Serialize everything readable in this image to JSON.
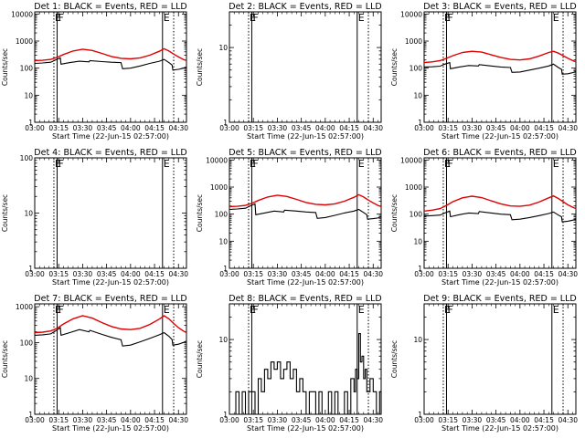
{
  "colors": {
    "events": "#000000",
    "lld": "#e00000",
    "frame": "#000000",
    "background": "#ffffff"
  },
  "x_tick_labels": [
    "03:00",
    "03:15",
    "03:30",
    "03:45",
    "04:00",
    "04:15",
    "04:30"
  ],
  "xlabel": "Start Time (22-Jun-15 02:57:00)",
  "ylabel": "Counts/sec",
  "chart_data": [
    {
      "type": "line",
      "title": "Det 1: BLACK = Events, RED = LLD",
      "x_unit": "minutes after 03:00",
      "xlim": [
        0,
        95
      ],
      "y_scale": "log",
      "ylim": [
        1,
        12000
      ],
      "y_tick_labels": [
        "10000",
        "1000",
        "100",
        "10",
        "1"
      ],
      "y_ticks": [
        10000,
        1000,
        100,
        10,
        1
      ],
      "markers": [
        {
          "x": 12,
          "label": "E",
          "style": "dotted"
        },
        {
          "x": 14,
          "label": "F",
          "style": "solid"
        },
        {
          "x": 80,
          "label": "E",
          "style": "solid"
        },
        {
          "x": 87,
          "label": "",
          "style": "dotted"
        }
      ],
      "series": [
        {
          "role": "lld",
          "x": [
            0,
            5,
            10,
            14,
            18,
            24,
            30,
            36,
            42,
            48,
            54,
            60,
            66,
            72,
            78,
            81,
            84,
            87,
            90,
            93,
            95
          ],
          "values": [
            190,
            195,
            210,
            250,
            320,
            430,
            500,
            450,
            350,
            270,
            230,
            220,
            240,
            300,
            420,
            520,
            430,
            330,
            260,
            210,
            190
          ]
        },
        {
          "role": "events",
          "x": [
            0,
            5,
            10,
            13,
            16,
            16.5,
            22,
            28,
            34,
            34.5,
            42,
            48,
            54,
            55,
            60,
            66,
            72,
            78,
            81,
            84,
            86,
            86.5,
            90,
            93,
            95
          ],
          "values": [
            150,
            155,
            165,
            200,
            240,
            140,
            160,
            180,
            170,
            190,
            175,
            165,
            160,
            95,
            100,
            120,
            150,
            180,
            210,
            160,
            130,
            85,
            90,
            100,
            110
          ]
        }
      ]
    },
    {
      "type": "line",
      "title": "Det 2: BLACK = Events, RED = LLD",
      "x_unit": "minutes after 03:00",
      "xlim": [
        0,
        95
      ],
      "y_scale": "log",
      "ylim": [
        1,
        30
      ],
      "y_tick_labels": [
        "10",
        "1"
      ],
      "y_ticks": [
        10,
        1
      ],
      "markers": [
        {
          "x": 12,
          "label": "E",
          "style": "dotted"
        },
        {
          "x": 14,
          "label": "F",
          "style": "solid"
        },
        {
          "x": 80,
          "label": "E",
          "style": "solid"
        },
        {
          "x": 87,
          "label": "",
          "style": "dotted"
        }
      ],
      "series": []
    },
    {
      "type": "line",
      "title": "Det 3: BLACK = Events, RED = LLD",
      "x_unit": "minutes after 03:00",
      "xlim": [
        0,
        95
      ],
      "y_scale": "log",
      "ylim": [
        1,
        12000
      ],
      "y_tick_labels": [
        "10000",
        "1000",
        "100",
        "10",
        "1"
      ],
      "y_ticks": [
        10000,
        1000,
        100,
        10,
        1
      ],
      "markers": [
        {
          "x": 12,
          "label": "E",
          "style": "dotted"
        },
        {
          "x": 14,
          "label": "F",
          "style": "solid"
        },
        {
          "x": 80,
          "label": "E",
          "style": "solid"
        },
        {
          "x": 87,
          "label": "",
          "style": "dotted"
        }
      ],
      "series": [
        {
          "role": "lld",
          "x": [
            0,
            5,
            10,
            14,
            18,
            24,
            30,
            36,
            42,
            48,
            54,
            60,
            66,
            72,
            78,
            81,
            84,
            87,
            90,
            93,
            95
          ],
          "values": [
            160,
            170,
            190,
            230,
            290,
            380,
            420,
            390,
            310,
            250,
            210,
            200,
            220,
            280,
            380,
            420,
            360,
            290,
            230,
            190,
            170
          ]
        },
        {
          "role": "events",
          "x": [
            0,
            5,
            10,
            13,
            16,
            16.5,
            22,
            28,
            34,
            34.5,
            42,
            48,
            54,
            55,
            60,
            66,
            72,
            78,
            81,
            84,
            86,
            86.5,
            90,
            93,
            95
          ],
          "values": [
            110,
            112,
            118,
            140,
            160,
            95,
            110,
            125,
            120,
            135,
            120,
            110,
            105,
            70,
            72,
            85,
            100,
            120,
            140,
            105,
            90,
            60,
            62,
            68,
            75
          ]
        }
      ]
    },
    {
      "type": "line",
      "title": "Det 4: BLACK = Events, RED = LLD",
      "x_unit": "minutes after 03:00",
      "xlim": [
        0,
        95
      ],
      "y_scale": "log",
      "ylim": [
        1,
        100
      ],
      "y_tick_labels": [
        "100",
        "10",
        "1"
      ],
      "y_ticks": [
        100,
        10,
        1
      ],
      "markers": [
        {
          "x": 12,
          "label": "E",
          "style": "dotted"
        },
        {
          "x": 14,
          "label": "F",
          "style": "solid"
        },
        {
          "x": 80,
          "label": "E",
          "style": "solid"
        },
        {
          "x": 87,
          "label": "",
          "style": "dotted"
        }
      ],
      "series": []
    },
    {
      "type": "line",
      "title": "Det 5: BLACK = Events, RED = LLD",
      "x_unit": "minutes after 03:00",
      "xlim": [
        0,
        95
      ],
      "y_scale": "log",
      "ylim": [
        1,
        12000
      ],
      "y_tick_labels": [
        "10000",
        "1000",
        "100",
        "10",
        "1"
      ],
      "y_ticks": [
        10000,
        1000,
        100,
        10,
        1
      ],
      "markers": [
        {
          "x": 12,
          "label": "E",
          "style": "dotted"
        },
        {
          "x": 14,
          "label": "F",
          "style": "solid"
        },
        {
          "x": 80,
          "label": "E",
          "style": "solid"
        },
        {
          "x": 87,
          "label": "",
          "style": "dotted"
        }
      ],
      "series": [
        {
          "role": "lld",
          "x": [
            0,
            5,
            10,
            14,
            18,
            24,
            30,
            36,
            42,
            48,
            54,
            60,
            66,
            72,
            78,
            81,
            84,
            87,
            90,
            93,
            95
          ],
          "values": [
            190,
            195,
            210,
            250,
            320,
            430,
            500,
            450,
            350,
            270,
            230,
            220,
            240,
            300,
            420,
            520,
            430,
            330,
            260,
            210,
            190
          ]
        },
        {
          "role": "events",
          "x": [
            0,
            5,
            10,
            13,
            16,
            16.5,
            22,
            28,
            34,
            34.5,
            42,
            48,
            54,
            55,
            60,
            66,
            72,
            78,
            81,
            84,
            86,
            86.5,
            90,
            93,
            95
          ],
          "values": [
            150,
            155,
            165,
            200,
            240,
            95,
            110,
            130,
            120,
            140,
            130,
            120,
            115,
            70,
            75,
            90,
            110,
            130,
            150,
            115,
            95,
            65,
            68,
            72,
            80
          ]
        }
      ]
    },
    {
      "type": "line",
      "title": "Det 6: BLACK = Events, RED = LLD",
      "x_unit": "minutes after 03:00",
      "xlim": [
        0,
        95
      ],
      "y_scale": "log",
      "ylim": [
        1,
        12000
      ],
      "y_tick_labels": [
        "10000",
        "1000",
        "100",
        "10",
        "1"
      ],
      "y_ticks": [
        10000,
        1000,
        100,
        10,
        1
      ],
      "markers": [
        {
          "x": 12,
          "label": "E",
          "style": "dotted"
        },
        {
          "x": 14,
          "label": "F",
          "style": "solid"
        },
        {
          "x": 80,
          "label": "E",
          "style": "solid"
        },
        {
          "x": 87,
          "label": "",
          "style": "dotted"
        }
      ],
      "series": [
        {
          "role": "lld",
          "x": [
            0,
            5,
            10,
            14,
            18,
            24,
            30,
            36,
            42,
            48,
            54,
            60,
            66,
            72,
            78,
            81,
            84,
            87,
            90,
            93,
            95
          ],
          "values": [
            130,
            140,
            160,
            210,
            290,
            400,
            460,
            410,
            310,
            240,
            200,
            195,
            215,
            280,
            400,
            470,
            380,
            290,
            220,
            180,
            160
          ]
        },
        {
          "role": "events",
          "x": [
            0,
            5,
            10,
            13,
            16,
            16.5,
            22,
            28,
            34,
            34.5,
            42,
            48,
            54,
            55,
            60,
            66,
            72,
            78,
            81,
            84,
            86,
            86.5,
            90,
            93,
            95
          ],
          "values": [
            85,
            88,
            92,
            110,
            130,
            80,
            95,
            110,
            105,
            125,
            110,
            100,
            95,
            62,
            65,
            75,
            88,
            105,
            120,
            92,
            80,
            52,
            55,
            60,
            65
          ]
        }
      ]
    },
    {
      "type": "line",
      "title": "Det 7: BLACK = Events, RED = LLD",
      "x_unit": "minutes after 03:00",
      "xlim": [
        0,
        95
      ],
      "y_scale": "log",
      "ylim": [
        1,
        1200
      ],
      "y_tick_labels": [
        "1000",
        "100",
        "10",
        "1"
      ],
      "y_ticks": [
        1000,
        100,
        10,
        1
      ],
      "markers": [
        {
          "x": 12,
          "label": "E",
          "style": "dotted"
        },
        {
          "x": 14,
          "label": "F",
          "style": "solid"
        },
        {
          "x": 80,
          "label": "E",
          "style": "solid"
        },
        {
          "x": 87,
          "label": "",
          "style": "dotted"
        }
      ],
      "series": [
        {
          "role": "lld",
          "x": [
            0,
            5,
            10,
            14,
            18,
            24,
            30,
            36,
            42,
            48,
            54,
            60,
            66,
            72,
            78,
            81,
            84,
            87,
            90,
            93,
            95
          ],
          "values": [
            190,
            195,
            210,
            250,
            330,
            460,
            560,
            480,
            360,
            280,
            240,
            230,
            250,
            320,
            450,
            560,
            460,
            340,
            260,
            210,
            190
          ]
        },
        {
          "role": "events",
          "x": [
            0,
            5,
            10,
            13,
            16,
            16.5,
            22,
            28,
            34,
            34.5,
            42,
            48,
            54,
            55,
            60,
            66,
            72,
            78,
            81,
            84,
            86,
            86.5,
            90,
            93,
            95
          ],
          "values": [
            160,
            165,
            175,
            210,
            260,
            160,
            190,
            230,
            200,
            220,
            170,
            140,
            120,
            80,
            85,
            105,
            130,
            165,
            190,
            150,
            120,
            85,
            90,
            100,
            110
          ]
        }
      ]
    },
    {
      "type": "line",
      "title": "Det 8: BLACK = Events, RED = LLD",
      "x_unit": "minutes after 03:00",
      "xlim": [
        0,
        95
      ],
      "y_scale": "log",
      "ylim": [
        1,
        30
      ],
      "y_tick_labels": [
        "10",
        "1"
      ],
      "y_ticks": [
        10,
        1
      ],
      "markers": [
        {
          "x": 12,
          "label": "E",
          "style": "dotted"
        },
        {
          "x": 14,
          "label": "F",
          "style": "solid"
        },
        {
          "x": 80,
          "label": "E",
          "style": "solid"
        },
        {
          "x": 87,
          "label": "",
          "style": "dotted"
        }
      ],
      "series": [
        {
          "role": "events",
          "x": [
            0,
            2,
            4,
            6,
            8,
            10,
            12,
            14,
            16,
            18,
            20,
            22,
            24,
            26,
            28,
            30,
            32,
            34,
            36,
            38,
            40,
            42,
            44,
            46,
            48,
            50,
            52,
            54,
            56,
            58,
            60,
            62,
            64,
            66,
            68,
            70,
            72,
            74,
            76,
            78,
            79,
            80,
            81,
            82,
            83,
            84,
            85,
            86,
            88,
            90,
            92,
            94,
            95
          ],
          "values": [
            1,
            1,
            2,
            1,
            2,
            1,
            2,
            2,
            1,
            3,
            2,
            4,
            3,
            5,
            4,
            5,
            3,
            4,
            5,
            3,
            4,
            2,
            3,
            2,
            1,
            2,
            2,
            1,
            2,
            1,
            1,
            2,
            1,
            2,
            1,
            1,
            2,
            1,
            3,
            2,
            4,
            3,
            12,
            5,
            6,
            3,
            4,
            2,
            3,
            2,
            1,
            2,
            1
          ]
        }
      ]
    },
    {
      "type": "line",
      "title": "Det 9: BLACK = Events, RED = LLD",
      "x_unit": "minutes after 03:00",
      "xlim": [
        0,
        95
      ],
      "y_scale": "log",
      "ylim": [
        1,
        30
      ],
      "y_tick_labels": [
        "10",
        "1"
      ],
      "y_ticks": [
        10,
        1
      ],
      "markers": [
        {
          "x": 12,
          "label": "E",
          "style": "dotted"
        },
        {
          "x": 14,
          "label": "F",
          "style": "solid"
        },
        {
          "x": 80,
          "label": "E",
          "style": "solid"
        },
        {
          "x": 87,
          "label": "",
          "style": "dotted"
        }
      ],
      "series": []
    }
  ]
}
